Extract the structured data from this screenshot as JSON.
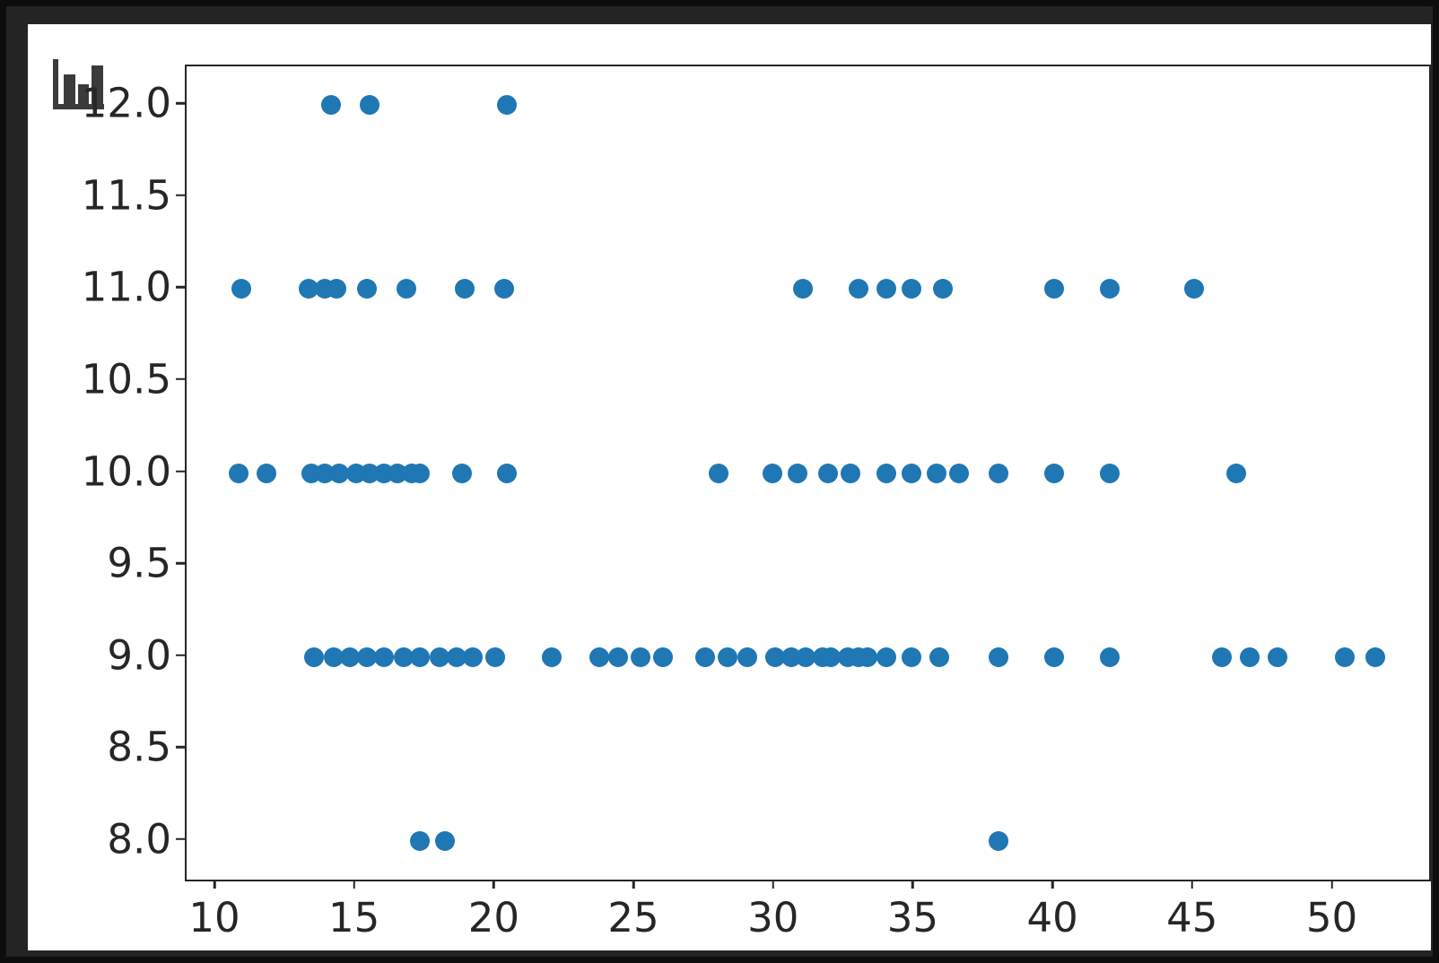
{
  "window": {
    "icon_name": "bar-chart-icon"
  },
  "colors": {
    "background": "#0d0d0d",
    "panel": "#242424",
    "figure_background": "#ffffff",
    "marker": "#1f77b4",
    "axis": "#262626",
    "tick_label": "#262626",
    "icon": "#3b3b3b"
  },
  "chart_data": {
    "type": "scatter",
    "title": "",
    "xlabel": "",
    "ylabel": "",
    "grid": false,
    "legend": null,
    "xlim": [
      8.94,
      53.42
    ],
    "ylim": [
      7.79,
      12.21
    ],
    "x_ticks": [
      10,
      15,
      20,
      25,
      30,
      35,
      40,
      45,
      50
    ],
    "x_tick_labels": [
      "10",
      "15",
      "20",
      "25",
      "30",
      "35",
      "40",
      "45",
      "50"
    ],
    "y_ticks": [
      8.0,
      8.5,
      9.0,
      9.5,
      10.0,
      10.5,
      11.0,
      11.5,
      12.0
    ],
    "y_tick_labels": [
      "8.0",
      "8.5",
      "9.0",
      "9.5",
      "10.0",
      "10.5",
      "11.0",
      "11.5",
      "12.0"
    ],
    "marker_diameter_px": 22,
    "rows": [
      {
        "y": 12.0,
        "x": [
          14.1,
          15.5,
          20.4
        ]
      },
      {
        "y": 11.0,
        "x": [
          10.9,
          13.3,
          13.9,
          14.3,
          15.4,
          16.8,
          18.9,
          20.3,
          31.0,
          33.0,
          34.0,
          34.9,
          36.0,
          40.0,
          42.0,
          45.0
        ]
      },
      {
        "y": 10.0,
        "x": [
          10.8,
          11.8,
          13.4,
          13.9,
          14.4,
          15.0,
          15.5,
          16.0,
          16.5,
          17.0,
          17.3,
          18.8,
          20.4,
          28.0,
          29.9,
          30.8,
          31.9,
          32.7,
          34.0,
          34.9,
          35.8,
          36.6,
          38.0,
          40.0,
          42.0,
          46.5
        ]
      },
      {
        "y": 9.0,
        "x": [
          13.5,
          14.2,
          14.8,
          15.4,
          16.0,
          16.7,
          17.3,
          18.0,
          18.6,
          19.2,
          20.0,
          22.0,
          23.7,
          24.4,
          25.2,
          26.0,
          27.5,
          28.3,
          29.0,
          30.0,
          30.6,
          31.1,
          31.7,
          32.0,
          32.6,
          33.0,
          33.3,
          34.0,
          34.9,
          35.9,
          38.0,
          40.0,
          42.0,
          46.0,
          47.0,
          48.0,
          50.4,
          51.5
        ]
      },
      {
        "y": 8.0,
        "x": [
          17.3,
          18.2,
          38.0
        ]
      }
    ]
  }
}
